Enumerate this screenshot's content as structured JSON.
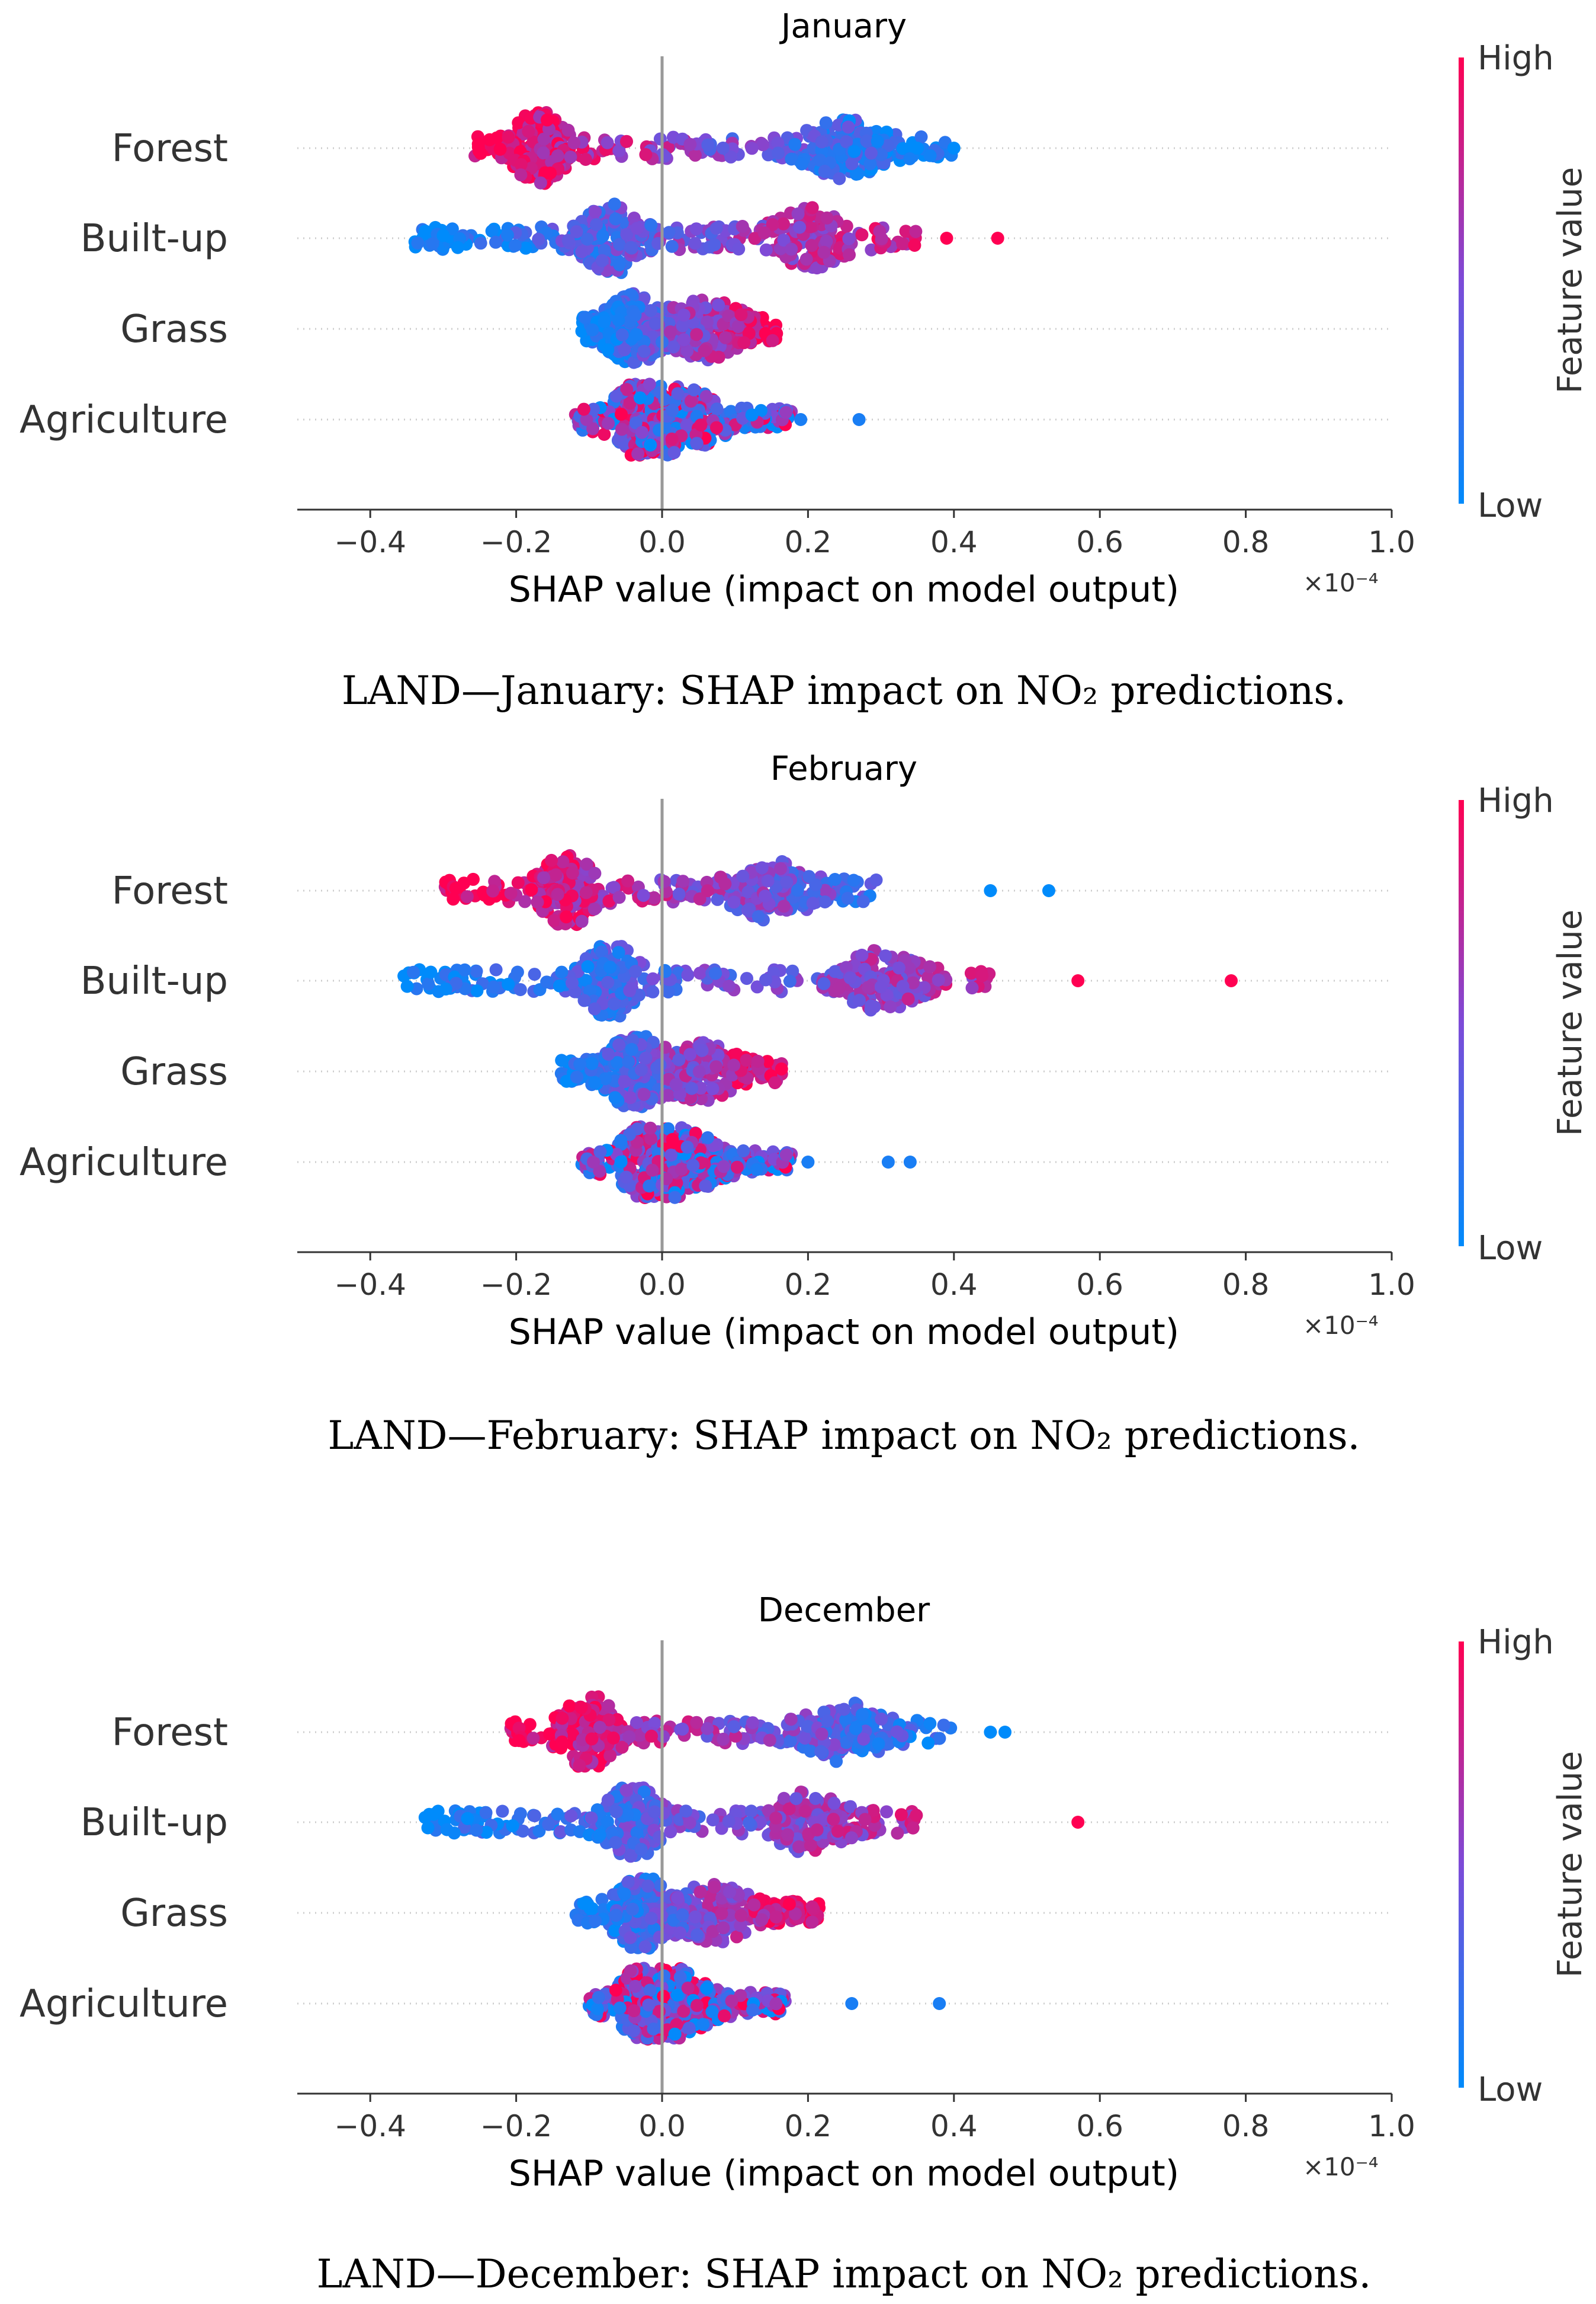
{
  "chart_data": [
    {
      "type": "scatter",
      "subtype": "shap-beeswarm",
      "title": "January",
      "xlabel": "SHAP value (impact on model output)",
      "x_multiplier": "×10⁻⁴",
      "xlim": [
        -0.5,
        1.0
      ],
      "xticks": [
        "−0.4",
        "−0.2",
        "0.0",
        "0.2",
        "0.4",
        "0.6",
        "0.8",
        "1.0"
      ],
      "features": [
        {
          "name": "Forest",
          "min": -0.26,
          "max": 0.4,
          "cluster_low": -0.17,
          "cluster_high": 0.25,
          "high_side": "negative",
          "outliers": [
            0.35,
            0.4
          ]
        },
        {
          "name": "Built-up",
          "min": -0.34,
          "max": 0.46,
          "cluster_low": -0.07,
          "cluster_high": 0.2,
          "high_side": "positive",
          "outliers": [
            0.39,
            0.46
          ]
        },
        {
          "name": "Grass",
          "min": -0.11,
          "max": 0.16,
          "cluster_low": -0.04,
          "cluster_high": 0.06,
          "high_side": "positive",
          "outliers": []
        },
        {
          "name": "Agriculture",
          "min": -0.12,
          "max": 0.27,
          "cluster_low": -0.03,
          "cluster_high": 0.03,
          "high_side": "mixed",
          "outliers": [
            0.19,
            0.27
          ]
        }
      ],
      "caption": "LAND—January: SHAP impact on NO₂ predictions."
    },
    {
      "type": "scatter",
      "subtype": "shap-beeswarm",
      "title": "February",
      "xlabel": "SHAP value (impact on model output)",
      "x_multiplier": "×10⁻⁴",
      "xlim": [
        -0.5,
        1.0
      ],
      "xticks": [
        "−0.4",
        "−0.2",
        "0.0",
        "0.2",
        "0.4",
        "0.6",
        "0.8",
        "1.0"
      ],
      "features": [
        {
          "name": "Forest",
          "min": -0.3,
          "max": 0.53,
          "cluster_low": -0.13,
          "cluster_high": 0.15,
          "high_side": "negative",
          "outliers": [
            0.45,
            0.53
          ]
        },
        {
          "name": "Built-up",
          "min": -0.36,
          "max": 0.78,
          "cluster_low": -0.07,
          "cluster_high": 0.3,
          "high_side": "positive",
          "outliers": [
            0.57,
            0.78
          ]
        },
        {
          "name": "Grass",
          "min": -0.14,
          "max": 0.17,
          "cluster_low": -0.04,
          "cluster_high": 0.05,
          "high_side": "positive",
          "outliers": []
        },
        {
          "name": "Agriculture",
          "min": -0.11,
          "max": 0.34,
          "cluster_low": -0.02,
          "cluster_high": 0.03,
          "high_side": "mixed",
          "outliers": [
            0.2,
            0.31,
            0.34
          ]
        }
      ],
      "caption": "LAND—February: SHAP impact on NO₂ predictions."
    },
    {
      "type": "scatter",
      "subtype": "shap-beeswarm",
      "title": "December",
      "xlabel": "SHAP value (impact on model output)",
      "x_multiplier": "×10⁻⁴",
      "xlim": [
        -0.5,
        1.0
      ],
      "xticks": [
        "−0.4",
        "−0.2",
        "0.0",
        "0.2",
        "0.4",
        "0.6",
        "0.8",
        "1.0"
      ],
      "features": [
        {
          "name": "Forest",
          "min": -0.21,
          "max": 0.47,
          "cluster_low": -0.1,
          "cluster_high": 0.25,
          "high_side": "negative",
          "outliers": [
            0.45,
            0.47
          ]
        },
        {
          "name": "Built-up",
          "min": -0.33,
          "max": 0.57,
          "cluster_low": -0.04,
          "cluster_high": 0.2,
          "high_side": "positive",
          "outliers": [
            0.57
          ]
        },
        {
          "name": "Grass",
          "min": -0.12,
          "max": 0.22,
          "cluster_low": -0.03,
          "cluster_high": 0.07,
          "high_side": "positive",
          "outliers": []
        },
        {
          "name": "Agriculture",
          "min": -0.1,
          "max": 0.38,
          "cluster_low": -0.02,
          "cluster_high": 0.02,
          "high_side": "mixed",
          "outliers": [
            0.26,
            0.38
          ]
        }
      ],
      "caption": "LAND—December: SHAP impact on NO₂ predictions."
    }
  ],
  "colorbar": {
    "high_label": "High",
    "low_label": "Low",
    "title": "Feature value",
    "color_high": "#ff0052",
    "color_low": "#008bfb"
  }
}
